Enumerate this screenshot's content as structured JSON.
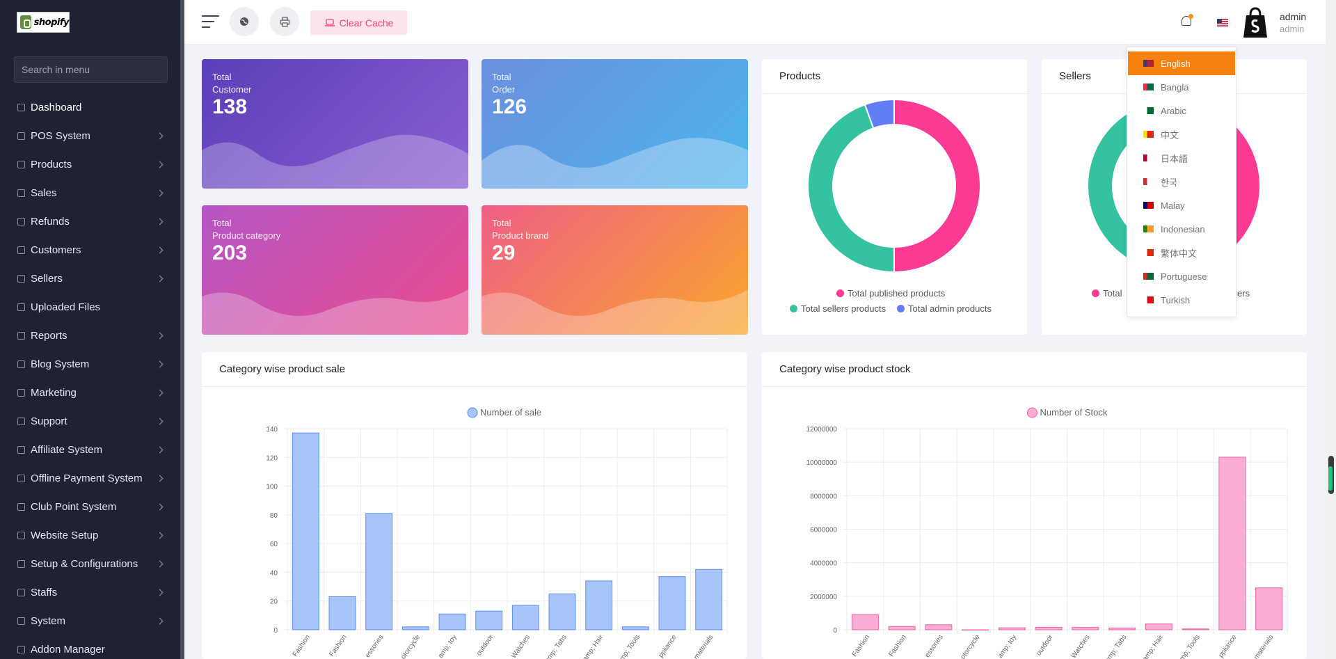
{
  "sidebar": {
    "logo_text": "shopify",
    "search_placeholder": "Search in menu",
    "items": [
      {
        "label": "Dashboard",
        "icon": "home-icon",
        "chevron": false
      },
      {
        "label": "POS System",
        "icon": "list-icon",
        "chevron": true
      },
      {
        "label": "Products",
        "icon": "cart-icon",
        "chevron": true
      },
      {
        "label": "Sales",
        "icon": "receipt-icon",
        "chevron": true
      },
      {
        "label": "Refunds",
        "icon": "backward-icon",
        "chevron": true
      },
      {
        "label": "Customers",
        "icon": "users-icon",
        "chevron": true
      },
      {
        "label": "Sellers",
        "icon": "user-icon",
        "chevron": true
      },
      {
        "label": "Uploaded Files",
        "icon": "folder-icon",
        "chevron": false
      },
      {
        "label": "Reports",
        "icon": "file-icon",
        "chevron": true
      },
      {
        "label": "Blog System",
        "icon": "megaphone-icon",
        "chevron": true
      },
      {
        "label": "Marketing",
        "icon": "bullhorn-icon",
        "chevron": true
      },
      {
        "label": "Support",
        "icon": "link-icon",
        "chevron": true
      },
      {
        "label": "Affiliate System",
        "icon": "share-icon",
        "chevron": true
      },
      {
        "label": "Offline Payment System",
        "icon": "money-icon",
        "chevron": true
      },
      {
        "label": "Club Point System",
        "icon": "award-icon",
        "chevron": true
      },
      {
        "label": "Website Setup",
        "icon": "desktop-icon",
        "chevron": true
      },
      {
        "label": "Setup & Configurations",
        "icon": "gear-icon",
        "chevron": true
      },
      {
        "label": "Staffs",
        "icon": "user-icon",
        "chevron": true
      },
      {
        "label": "System",
        "icon": "user-icon",
        "chevron": true
      },
      {
        "label": "Addon Manager",
        "icon": "wrench-icon",
        "chevron": false
      }
    ]
  },
  "topbar": {
    "clear_cache_label": "Clear Cache",
    "user_name": "admin",
    "user_role": "admin",
    "notification_dot_color": "#f7931e"
  },
  "stats": [
    {
      "line1": "Total",
      "line2": "Customer",
      "value": "138"
    },
    {
      "line1": "Total",
      "line2": "Order",
      "value": "126"
    },
    {
      "line1": "Total",
      "line2": "Product category",
      "value": "203"
    },
    {
      "line1": "Total",
      "line2": "Product brand",
      "value": "29"
    }
  ],
  "products_card": {
    "title": "Products",
    "legend": [
      "Total published products",
      "Total sellers products",
      "Total admin products"
    ]
  },
  "sellers_card": {
    "title": "Sellers",
    "legend_visible": [
      "Total",
      "ellers"
    ]
  },
  "language_menu": {
    "items": [
      {
        "label": "English",
        "active": true
      },
      {
        "label": "Bangla",
        "active": false
      },
      {
        "label": "Arabic",
        "active": false
      },
      {
        "label": "中文",
        "active": false
      },
      {
        "label": "日本語",
        "active": false
      },
      {
        "label": "한국",
        "active": false
      },
      {
        "label": "Malay",
        "active": false
      },
      {
        "label": "Indonesian",
        "active": false
      },
      {
        "label": "繁体中文",
        "active": false
      },
      {
        "label": "Portuguese",
        "active": false
      },
      {
        "label": "Turkish",
        "active": false
      }
    ]
  },
  "chart_data": [
    {
      "type": "pie",
      "variant": "doughnut",
      "labels": [
        "Total published products",
        "Total sellers products",
        "Total admin products"
      ],
      "values": [
        50,
        44.5,
        5.5
      ],
      "colors": [
        "#fb3a94",
        "#34c2a0",
        "#617df6"
      ]
    },
    {
      "type": "pie",
      "variant": "doughnut",
      "labels": [
        "Total",
        "ellers"
      ],
      "values": [
        50,
        50
      ],
      "colors": [
        "#fb3a94",
        "#34c2a0"
      ]
    },
    {
      "type": "bar",
      "title": "Category wise product sale",
      "series": [
        {
          "name": "Number of sale",
          "values": [
            137,
            23,
            81,
            2,
            11,
            13,
            17,
            25,
            34,
            2,
            37,
            42
          ]
        }
      ],
      "categories": [
        "Women Clothing & Fashion",
        "Men Clothing & Fashion",
        "Computer & Accessories",
        "Automobile & Motorcycle",
        "Kids & toy",
        "Sports & outdoor",
        "Jewelry & Watches",
        "Cellphones & Tabs",
        "Beauty, Health & Hair",
        "Home Improvement & Tools",
        "Home decoration & Appliance",
        "Toy & Art materials"
      ],
      "tick_labels_visible": [
        "Fashion",
        "Fashion",
        "essories",
        "otorcycle",
        "amp; toy",
        "outdoor",
        "Watches",
        "amp; Tabs",
        "amp; Hair",
        "amp; Tools",
        "ppliance",
        "materials"
      ],
      "yticks": [
        "0",
        "20",
        "40",
        "60",
        "80",
        "100",
        "120",
        "140"
      ],
      "ylim": [
        0,
        140
      ],
      "color": "#a8c5fa",
      "border_color": "#5f8ef2",
      "legend_position": "top"
    },
    {
      "type": "bar",
      "title": "Category wise product stock",
      "series": [
        {
          "name": "Number of Stock",
          "values": [
            900000,
            200000,
            300000,
            0,
            120000,
            150000,
            140000,
            110000,
            350000,
            50000,
            10300000,
            2500000
          ]
        }
      ],
      "categories": [
        "Women Clothing & Fashion",
        "Men Clothing & Fashion",
        "Computer & Accessories",
        "Automobile & Motorcycle",
        "Kids & toy",
        "Sports & outdoor",
        "Jewelry & Watches",
        "Cellphones & Tabs",
        "Beauty, Health & Hair",
        "Home Improvement & Tools",
        "Home decoration & Appliance",
        "Toy & Art materials"
      ],
      "tick_labels_visible": [
        "Fashion",
        "Fashion",
        "essories",
        "otorcycle",
        "amp; toy",
        "outdoor",
        "Watches",
        "amp; Tabs",
        "amp; Hair",
        "amp; Tools",
        "ppliance",
        "materials"
      ],
      "yticks": [
        "0",
        "2000000",
        "4000000",
        "6000000",
        "8000000",
        "10000000",
        "12000000"
      ],
      "ylim": [
        0,
        12000000
      ],
      "color": "#fcadd5",
      "border_color": "#f0619e",
      "legend_position": "top"
    }
  ]
}
